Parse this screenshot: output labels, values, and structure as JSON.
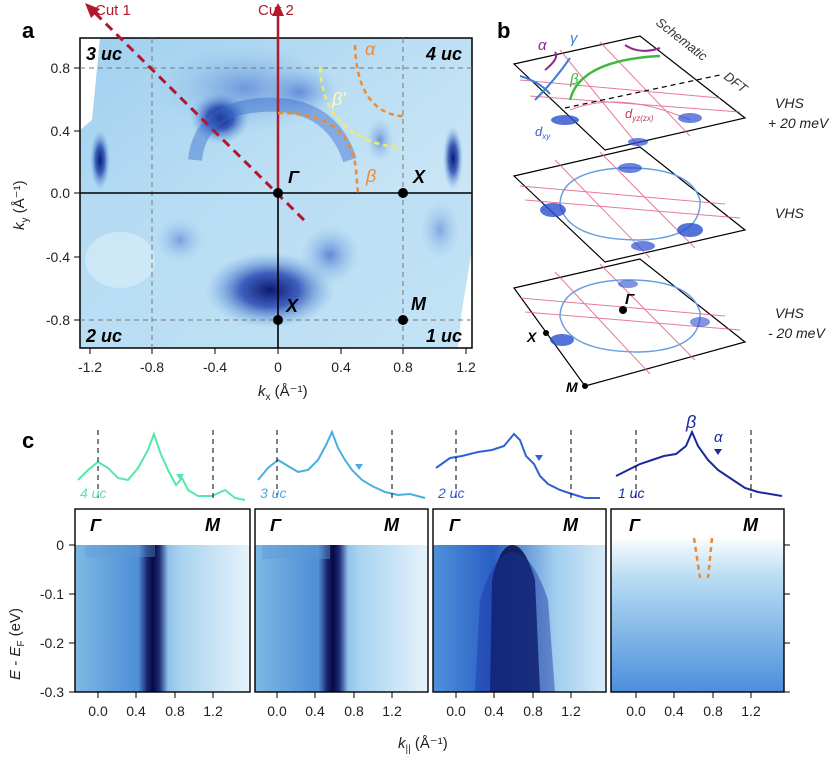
{
  "panel_labels": {
    "a": "a",
    "b": "b",
    "c": "c"
  },
  "panel_a": {
    "x_label": "k",
    "x_sub": "x",
    "x_unit": " (Å⁻¹)",
    "y_label": "k",
    "y_sub": "y",
    "y_unit": " (Å⁻¹)",
    "x_ticks": [
      "-1.2",
      "-0.8",
      "-0.4",
      "0",
      "0.4",
      "0.8",
      "1.2"
    ],
    "y_ticks": [
      "0.8",
      "0.4",
      "0.0",
      "-0.4",
      "-0.8"
    ],
    "quadrants": {
      "tl": "3 uc",
      "tr": "4 uc",
      "bl": "2 uc",
      "br": "1 uc"
    },
    "cut1": "Cut 1",
    "cut2": "Cut 2",
    "points": {
      "gamma": "Γ",
      "x_right": "X",
      "x_bottom": "X",
      "m": "M"
    },
    "band_labels": {
      "alpha": "α",
      "beta_prime": "β′",
      "beta": "β"
    }
  },
  "panel_b": {
    "top_labels": {
      "alpha": "α",
      "gamma": "γ",
      "beta": "β",
      "dxy": "d",
      "dxy_sub": "xy",
      "dyz": "d",
      "dyz_sub": "yz(zx)",
      "schematic": "Schematic",
      "dft": "DFT"
    },
    "layers": [
      "VHS",
      "+ 20 meV",
      "VHS",
      "VHS",
      "- 20 meV"
    ],
    "points": {
      "gamma": "Γ",
      "x": "X",
      "m": "M"
    }
  },
  "panel_c": {
    "x_label": "k",
    "x_sub": "||",
    "x_unit": " (Å⁻¹)",
    "y_label": "E - E",
    "y_sub": "F",
    "y_unit": " (eV)",
    "x_ticks": [
      "0.0",
      "0.4",
      "0.8",
      "1.2"
    ],
    "y_ticks": [
      "0",
      "-0.1",
      "-0.2",
      "-0.3"
    ],
    "gamma": "Γ",
    "m": "M",
    "spectra_labels": [
      "4 uc",
      "3 uc",
      "2 uc",
      "1 uc"
    ],
    "peak_labels": {
      "beta": "β",
      "alpha": "α"
    },
    "colors": {
      "c4": "#55e8a8",
      "c3": "#4aaee0",
      "c2": "#2f62d2",
      "c1": "#1a2a9a",
      "red": "#b2182b",
      "orange": "#f08a30"
    }
  }
}
